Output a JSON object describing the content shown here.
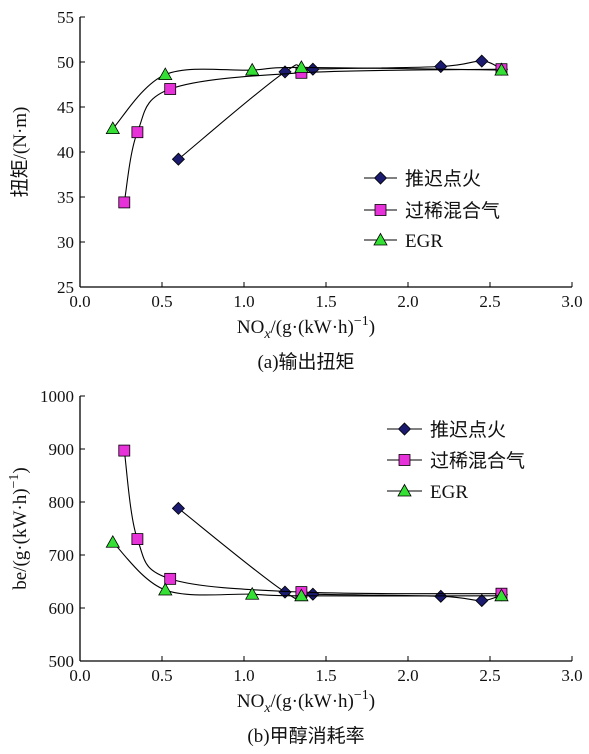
{
  "chart_data": [
    {
      "type": "line",
      "caption": "(a)输出扭矩",
      "xlabel": "NOx/(g·(kW·h)⁻¹)",
      "xlabel_parts": {
        "pre": "NO",
        "sub": "x",
        "post": "/(g·(kW·h)",
        "sup": "−1",
        "close": ")"
      },
      "ylabel": "扭矩/(N·m)",
      "xlim": [
        0.0,
        3.0
      ],
      "ylim": [
        25,
        55
      ],
      "xticks": [
        "0.0",
        "0.5",
        "1.0",
        "1.5",
        "2.0",
        "2.5",
        "3.0"
      ],
      "yticks": [
        "25",
        "30",
        "35",
        "40",
        "45",
        "50",
        "55"
      ],
      "legend_position": "center-right",
      "series": [
        {
          "name": "推迟点火",
          "marker": "diamond",
          "color": "#1a1a6e",
          "points": [
            [
              0.6,
              39.2
            ],
            [
              1.25,
              48.9
            ],
            [
              1.42,
              49.2
            ],
            [
              2.2,
              49.5
            ],
            [
              2.45,
              50.1
            ],
            [
              2.57,
              49.2
            ]
          ]
        },
        {
          "name": "过稀混合气",
          "marker": "square",
          "color": "#e832d9",
          "points": [
            [
              0.27,
              34.4
            ],
            [
              0.35,
              42.2
            ],
            [
              0.55,
              47.0
            ],
            [
              1.35,
              48.8
            ],
            [
              2.57,
              49.2
            ]
          ]
        },
        {
          "name": "EGR",
          "marker": "triangle",
          "color": "#33e033",
          "points": [
            [
              0.2,
              42.6
            ],
            [
              0.52,
              48.6
            ],
            [
              1.05,
              49.1
            ],
            [
              1.35,
              49.4
            ],
            [
              2.57,
              49.1
            ]
          ]
        }
      ]
    },
    {
      "type": "line",
      "caption": "(b)甲醇消耗率",
      "xlabel": "NOx/(g·(kW·h)⁻¹)",
      "xlabel_parts": {
        "pre": "NO",
        "sub": "x",
        "post": "/(g·(kW·h)",
        "sup": "−1",
        "close": ")"
      },
      "ylabel": "be/(g·(kW·h)⁻¹)",
      "ylabel_parts": {
        "pre": "be/(g·(kW·h)",
        "sup": "−1",
        "close": ")"
      },
      "xlim": [
        0.0,
        3.0
      ],
      "ylim": [
        500,
        1000
      ],
      "xticks": [
        "0.0",
        "0.5",
        "1.0",
        "1.5",
        "2.0",
        "2.5",
        "3.0"
      ],
      "yticks": [
        "500",
        "600",
        "700",
        "800",
        "900",
        "1000"
      ],
      "legend_position": "top-right",
      "series": [
        {
          "name": "推迟点火",
          "marker": "diamond",
          "color": "#1a1a6e",
          "points": [
            [
              0.6,
              788
            ],
            [
              1.25,
              630
            ],
            [
              1.42,
              626
            ],
            [
              2.2,
              622
            ],
            [
              2.45,
              614
            ],
            [
              2.57,
              625
            ]
          ]
        },
        {
          "name": "过稀混合气",
          "marker": "square",
          "color": "#e832d9",
          "points": [
            [
              0.27,
              897
            ],
            [
              0.35,
              730
            ],
            [
              0.55,
              655
            ],
            [
              1.35,
              630
            ],
            [
              2.57,
              627
            ]
          ]
        },
        {
          "name": "EGR",
          "marker": "triangle",
          "color": "#33e033",
          "points": [
            [
              0.2,
              724
            ],
            [
              0.52,
              634
            ],
            [
              1.05,
              626
            ],
            [
              1.35,
              623
            ],
            [
              2.57,
              623
            ]
          ]
        }
      ]
    }
  ]
}
